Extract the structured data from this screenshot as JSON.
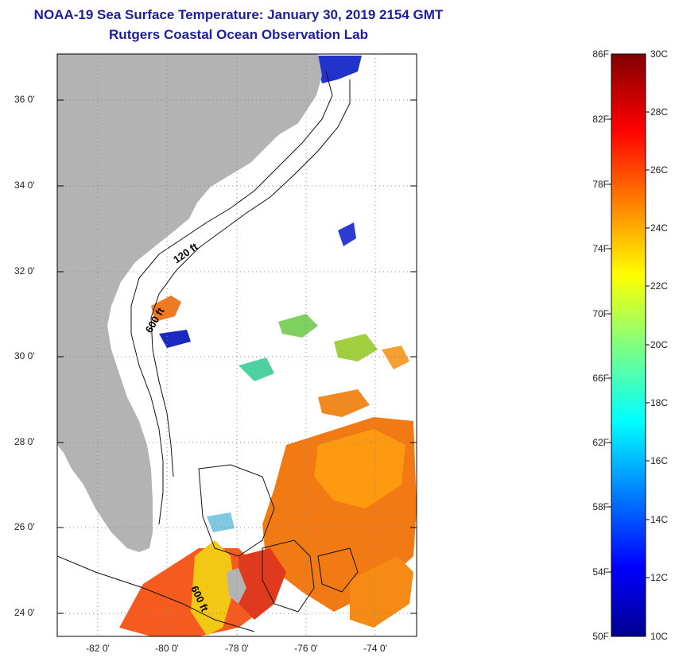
{
  "header": {
    "title": "NOAA-19 Sea Surface Temperature:  January 30, 2019 2154 GMT",
    "subtitle": "Rutgers Coastal Ocean Observation Lab"
  },
  "map": {
    "lat_labels": [
      "36 0'",
      "34 0'",
      "32 0'",
      "30 0'",
      "28 0'",
      "26 0'",
      "24 0'"
    ],
    "lon_labels": [
      "-82 0'",
      "-80 0'",
      "-78 0'",
      "-76 0'",
      "-74 0'"
    ],
    "depth_labels": [
      "120 ft",
      "600 ft",
      "600 ft"
    ]
  },
  "colorbar": {
    "fahrenheit": [
      "86F",
      "82F",
      "78F",
      "74F",
      "70F",
      "66F",
      "62F",
      "58F",
      "54F",
      "50F"
    ],
    "celsius": [
      "30C",
      "28C",
      "26C",
      "24C",
      "22C",
      "20C",
      "18C",
      "16C",
      "14C",
      "12C",
      "10C"
    ]
  },
  "colors": {
    "land": "#b3b3b3",
    "title": "#1d1d9e",
    "water_clouds": "#ffffff"
  }
}
